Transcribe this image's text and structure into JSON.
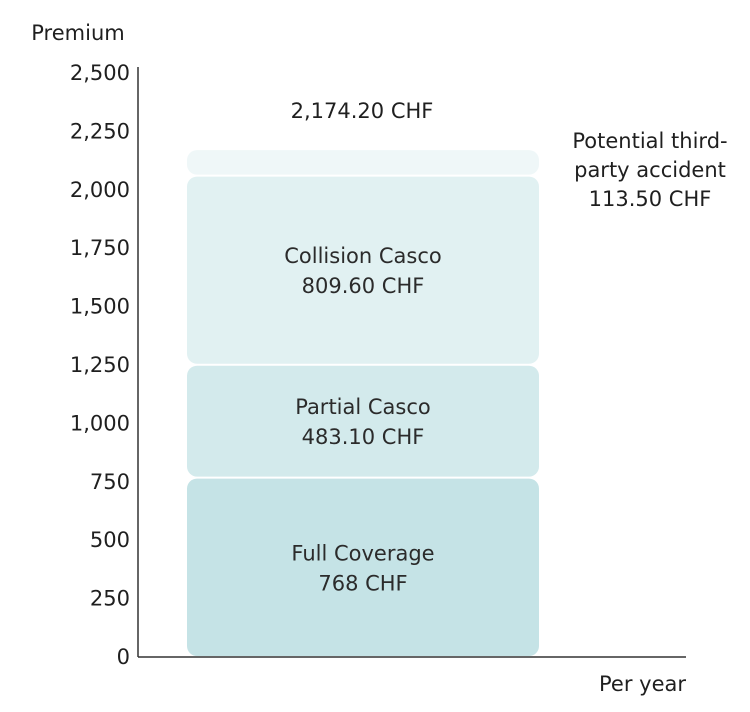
{
  "chart_data": {
    "type": "bar",
    "stacked": true,
    "categories": [
      "Per year"
    ],
    "ylabel": "Premium",
    "xlabel": "Per year",
    "ylim": [
      0,
      2500
    ],
    "yticks": [
      0,
      250,
      500,
      750,
      1000,
      1250,
      1500,
      1750,
      2000,
      2250,
      2500
    ],
    "ytick_labels": [
      "0",
      "250",
      "500",
      "750",
      "1,000",
      "1,250",
      "1,500",
      "1,750",
      "2,000",
      "2,250",
      "2,500"
    ],
    "grid": false,
    "series": [
      {
        "name": "Full Coverage",
        "value": 768,
        "value_label": "768 CHF",
        "color": "#c5e3e6"
      },
      {
        "name": "Partial Casco",
        "value": 483.1,
        "value_label": "483.10 CHF",
        "color": "#d3eaec"
      },
      {
        "name": "Collision Casco",
        "value": 809.6,
        "value_label": "809.60 CHF",
        "color": "#e1f1f2"
      },
      {
        "name": "Potential third-party accident",
        "name_lines": [
          "Potential third-",
          "party accident"
        ],
        "value": 113.5,
        "value_label": "113.50 CHF",
        "color": "#eff7f8"
      }
    ],
    "total_label": "2,174.20 CHF"
  }
}
